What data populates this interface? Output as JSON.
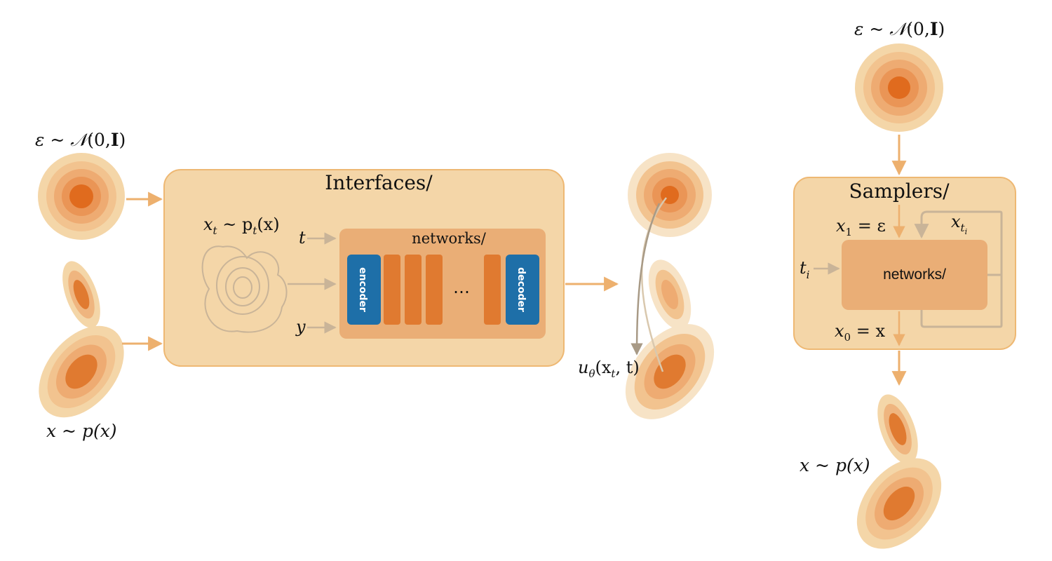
{
  "noise_label": {
    "eps": "ε",
    "tilde": " ~ ",
    "N": "𝒩",
    "open": "(0,",
    "I": "I",
    "close": ")"
  },
  "data_label": "x ~ p(x)",
  "interfaces": {
    "title": "Interfaces/",
    "xt_label": {
      "x": "x",
      "t": "t",
      "mid": " ~ p",
      "end": "(x)"
    },
    "t_input": "t",
    "y_input": "y",
    "networks_title": "networks/",
    "encoder": "encoder",
    "decoder": "decoder",
    "ellipsis": "…"
  },
  "output_label": {
    "u": "u",
    "theta": "θ",
    "args_open": "(x",
    "args_t": "t",
    "args_close": ", t)"
  },
  "samplers": {
    "title": "Samplers/",
    "noise_label": {
      "eps": "ε",
      "tilde": " ~ ",
      "N": "𝒩",
      "open": "(0,",
      "I": "I",
      "close": ")"
    },
    "x1": {
      "x": "x",
      "sub": "1",
      "rest": " = ε"
    },
    "xti": {
      "x": "x",
      "t": "t",
      "i": "i"
    },
    "ti": {
      "t": "t",
      "i": "i"
    },
    "networks": "networks/",
    "x0": {
      "x": "x",
      "sub": "0",
      "rest": " = x"
    },
    "data_label": "x ~ p(x)"
  },
  "colors": {
    "box_fill": "#f4d6a8",
    "box_stroke": "#eeb873",
    "net_fill": "#eaae76",
    "layer": "#e07a30",
    "block_blue": "#1e6fa8",
    "arrow_orange": "#edb06e",
    "arrow_gray": "#c9b498",
    "density_dark": "#e06b1e"
  }
}
